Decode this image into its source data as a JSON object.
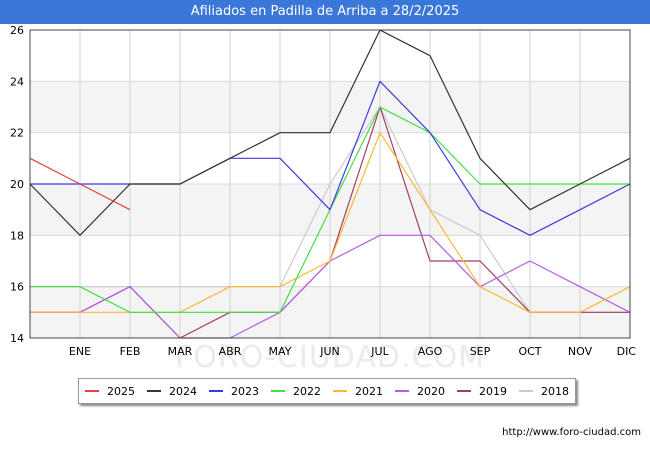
{
  "title": "Afiliados en Padilla de Arriba a 28/2/2025",
  "footer": "http://www.foro-ciudad.com",
  "watermark": "FORO-CIUDAD.COM",
  "chart_data": {
    "type": "line",
    "title": "Afiliados en Padilla de Arriba a 28/2/2025",
    "categories": [
      "",
      "ENE",
      "FEB",
      "MAR",
      "ABR",
      "MAY",
      "JUN",
      "JUL",
      "AGO",
      "SEP",
      "OCT",
      "NOV",
      "DIC"
    ],
    "ylim": [
      14,
      26
    ],
    "yticks": [
      14,
      16,
      18,
      20,
      22,
      24,
      26
    ],
    "grid": true,
    "legend_position": "bottom",
    "series": [
      {
        "name": "2025",
        "color": "#e64040",
        "values": [
          21,
          20,
          19,
          null,
          null,
          null,
          null,
          null,
          null,
          null,
          null,
          null,
          null
        ]
      },
      {
        "name": "2024",
        "color": "#333333",
        "values": [
          20,
          18,
          20,
          20,
          21,
          22,
          22,
          26,
          25,
          21,
          19,
          20,
          21
        ]
      },
      {
        "name": "2023",
        "color": "#3b3be0",
        "values": [
          20,
          20,
          20,
          20,
          21,
          21,
          19,
          24,
          22,
          19,
          18,
          19,
          20
        ]
      },
      {
        "name": "2022",
        "color": "#40e040",
        "values": [
          16,
          16,
          15,
          15,
          15,
          15,
          19,
          23,
          22,
          20,
          20,
          20,
          20
        ]
      },
      {
        "name": "2021",
        "color": "#ffb733",
        "values": [
          15,
          15,
          15,
          15,
          16,
          16,
          17,
          22,
          19,
          16,
          15,
          15,
          16
        ]
      },
      {
        "name": "2020",
        "color": "#b45fe8",
        "values": [
          15,
          15,
          16,
          14,
          14,
          15,
          17,
          18,
          18,
          16,
          17,
          16,
          15
        ]
      },
      {
        "name": "2019",
        "color": "#a04060",
        "values": [
          15,
          15,
          16,
          14,
          15,
          15,
          17,
          23,
          17,
          17,
          15,
          15,
          15
        ]
      },
      {
        "name": "2018",
        "color": "#cccccc",
        "values": [
          16,
          16,
          16,
          16,
          16,
          16,
          20,
          23,
          19,
          18,
          15,
          15,
          15
        ]
      }
    ]
  }
}
